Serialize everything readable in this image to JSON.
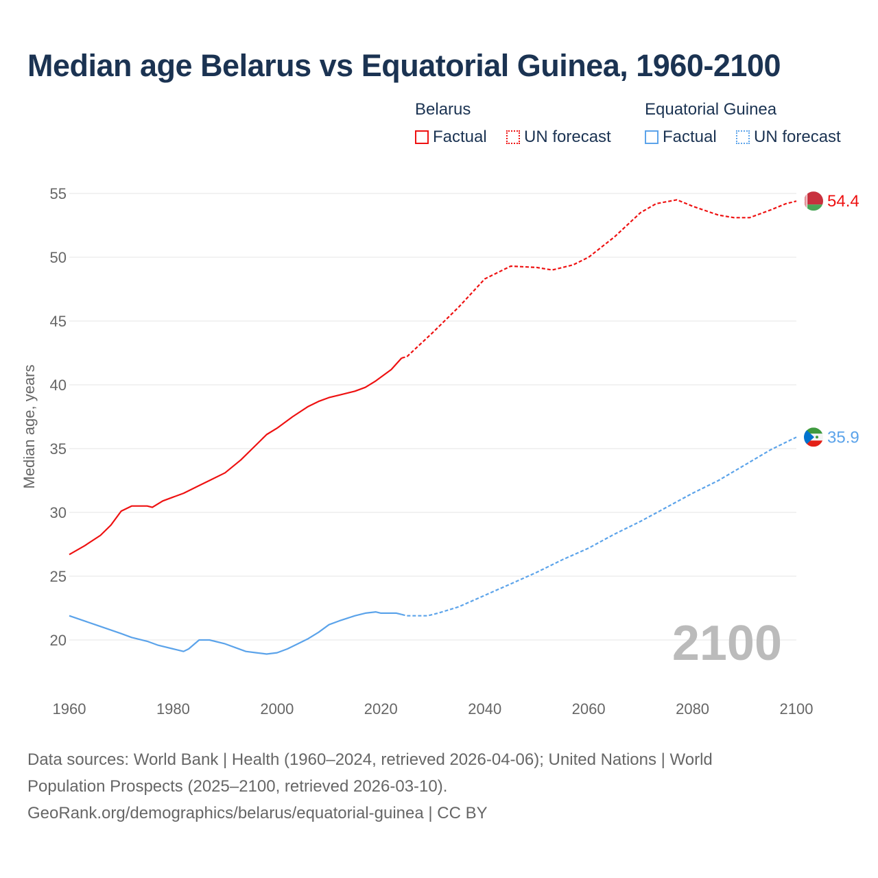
{
  "title": "Median age Belarus vs Equatorial Guinea, 1960-2100",
  "legend": {
    "groups": [
      {
        "name": "Belarus",
        "color": "#ee1111",
        "items": [
          "Factual",
          "UN forecast"
        ]
      },
      {
        "name": "Equatorial Guinea",
        "color": "#5ba3ea",
        "items": [
          "Factual",
          "UN forecast"
        ]
      }
    ]
  },
  "year_watermark": "2100",
  "footer": {
    "line1": "Data sources: World Bank | Health (1960–2024, retrieved 2026-04-06); United Nations | World",
    "line2": "Population Prospects (2025–2100, retrieved 2026-03-10).",
    "line3": "GeoRank.org/demographics/belarus/equatorial-guinea | CC BY"
  },
  "chart_data": {
    "type": "line",
    "title": "Median age Belarus vs Equatorial Guinea, 1960-2100",
    "xlabel": "",
    "ylabel": "Median age, years",
    "xlim": [
      1960,
      2100
    ],
    "ylim": [
      20,
      55
    ],
    "xticks": [
      1960,
      1980,
      2000,
      2020,
      2040,
      2060,
      2080,
      2100
    ],
    "yticks": [
      20,
      25,
      30,
      35,
      40,
      45,
      50,
      55
    ],
    "grid": true,
    "series": [
      {
        "name": "Belarus",
        "segment": "Factual",
        "color": "#ee1111",
        "dash": false,
        "x": [
          1960,
          1963,
          1966,
          1968,
          1970,
          1972,
          1975,
          1976,
          1978,
          1980,
          1982,
          1985,
          1987,
          1990,
          1993,
          1995,
          1998,
          2000,
          2003,
          2006,
          2008,
          2010,
          2012,
          2015,
          2017,
          2019,
          2022,
          2024
        ],
        "y": [
          26.7,
          27.4,
          28.2,
          29.0,
          30.1,
          30.5,
          30.5,
          30.4,
          30.9,
          31.2,
          31.5,
          32.1,
          32.5,
          33.1,
          34.1,
          34.9,
          36.1,
          36.6,
          37.5,
          38.3,
          38.7,
          39.0,
          39.2,
          39.5,
          39.8,
          40.3,
          41.2,
          42.1
        ]
      },
      {
        "name": "Belarus",
        "segment": "UN forecast",
        "color": "#ee1111",
        "dash": true,
        "x": [
          2024,
          2025,
          2030,
          2035,
          2040,
          2045,
          2050,
          2053,
          2057,
          2060,
          2065,
          2070,
          2073,
          2077,
          2080,
          2085,
          2088,
          2091,
          2095,
          2098,
          2100
        ],
        "y": [
          42.1,
          42.2,
          44.1,
          46.1,
          48.3,
          49.3,
          49.2,
          49.0,
          49.4,
          50.0,
          51.6,
          53.5,
          54.2,
          54.5,
          54.0,
          53.3,
          53.1,
          53.1,
          53.7,
          54.2,
          54.4
        ]
      },
      {
        "name": "Equatorial Guinea",
        "segment": "Factual",
        "color": "#5ba3ea",
        "dash": false,
        "x": [
          1960,
          1965,
          1970,
          1972,
          1975,
          1977,
          1980,
          1982,
          1983,
          1985,
          1987,
          1990,
          1992,
          1994,
          1996,
          1998,
          2000,
          2002,
          2004,
          2006,
          2008,
          2010,
          2012,
          2015,
          2017,
          2019,
          2020,
          2023,
          2024
        ],
        "y": [
          21.9,
          21.2,
          20.5,
          20.2,
          19.9,
          19.6,
          19.3,
          19.1,
          19.3,
          20.0,
          20.0,
          19.7,
          19.4,
          19.1,
          19.0,
          18.9,
          19.0,
          19.3,
          19.7,
          20.1,
          20.6,
          21.2,
          21.5,
          21.9,
          22.1,
          22.2,
          22.1,
          22.1,
          22.0
        ]
      },
      {
        "name": "Equatorial Guinea",
        "segment": "UN forecast",
        "color": "#5ba3ea",
        "dash": true,
        "x": [
          2024,
          2025,
          2029,
          2031,
          2035,
          2040,
          2045,
          2050,
          2055,
          2060,
          2065,
          2070,
          2075,
          2080,
          2085,
          2090,
          2095,
          2100
        ],
        "y": [
          22.0,
          21.9,
          21.9,
          22.1,
          22.6,
          23.5,
          24.4,
          25.3,
          26.3,
          27.2,
          28.3,
          29.3,
          30.4,
          31.5,
          32.5,
          33.7,
          34.9,
          35.9
        ]
      }
    ],
    "end_labels": [
      {
        "name": "Belarus",
        "value": "54.4",
        "y": 54.4,
        "color": "#ee1111"
      },
      {
        "name": "Equatorial Guinea",
        "value": "35.9",
        "y": 35.9,
        "color": "#5ba3ea"
      }
    ]
  }
}
